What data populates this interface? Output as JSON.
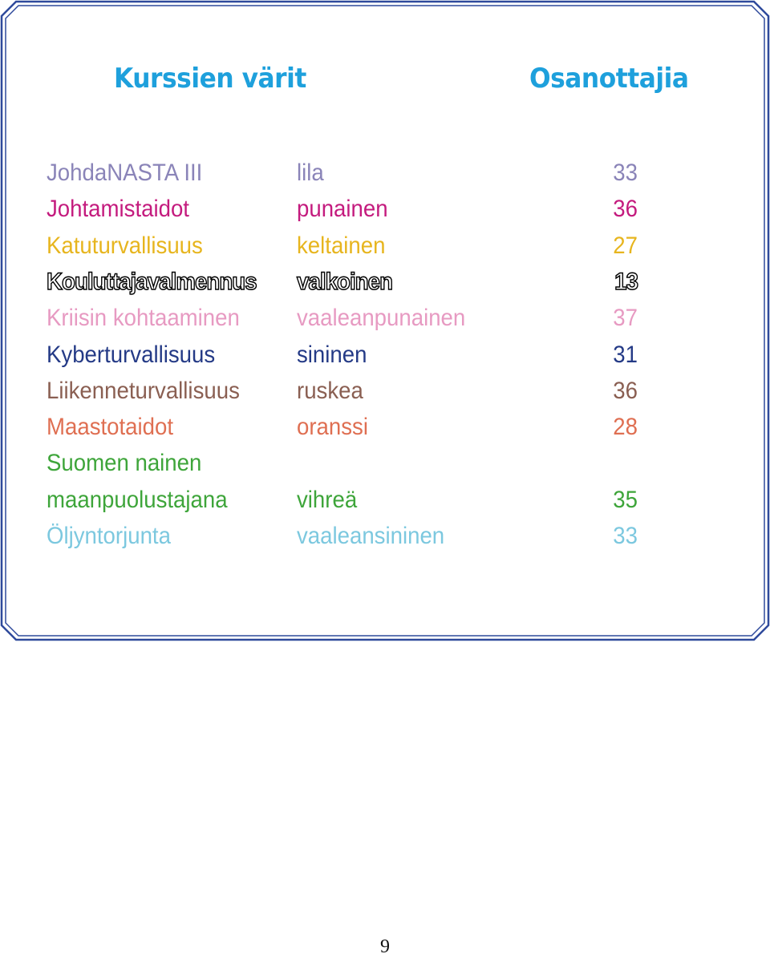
{
  "headings": {
    "courses": "Kurssien värit",
    "participants": "Osanottajia"
  },
  "colors": {
    "heading": "#1ea0dc",
    "frame": "#2f4a9c"
  },
  "courses": [
    {
      "name": "JohdaNASTA III",
      "color_name": "lila",
      "count": "33",
      "text_color": "#8a84b8"
    },
    {
      "name": "Johtamistaidot",
      "color_name": "punainen",
      "count": "36",
      "text_color": "#c41b7e"
    },
    {
      "name": "Katuturvallisuus",
      "color_name": "keltainen",
      "count": "27",
      "text_color": "#e7b51e"
    },
    {
      "name": "Kouluttajavalmennus",
      "color_name": "valkoinen",
      "count": "13",
      "text_color": "#ffffff",
      "outlined": true
    },
    {
      "name": "Kriisin kohtaaminen",
      "color_name": "vaaleanpunainen",
      "count": "37",
      "text_color": "#e79ac2"
    },
    {
      "name": "Kyberturvallisuus",
      "color_name": "sininen",
      "count": "31",
      "text_color": "#243a86"
    },
    {
      "name": "Liikenneturvallisuus",
      "color_name": "ruskea",
      "count": "36",
      "text_color": "#8a5f52"
    },
    {
      "name": "Maastotaidot",
      "color_name": "oranssi",
      "count": "28",
      "text_color": "#df6f52"
    },
    {
      "name": "Suomen nainen",
      "color_name": "",
      "count": "",
      "text_color": "#3ea53a"
    },
    {
      "name": "maanpuolustajana",
      "color_name": "vihreä",
      "count": "35",
      "text_color": "#3ea53a"
    },
    {
      "name": "Öljyntorjunta",
      "color_name": "vaaleansininen",
      "count": "33",
      "text_color": "#7cc8df"
    }
  ],
  "page_number": "9"
}
